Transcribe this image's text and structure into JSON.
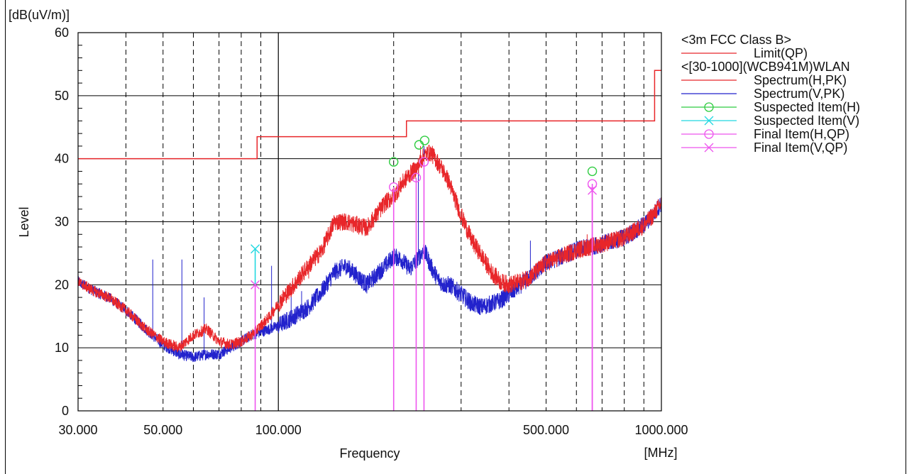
{
  "chart_data": {
    "type": "line",
    "y_unit_label": "[dB(uV/m)]",
    "x_unit_label": "[MHz]",
    "xlabel": "Frequency",
    "ylabel": "Level",
    "x_scale": "log",
    "xlim": [
      30,
      1000
    ],
    "ylim": [
      0,
      60
    ],
    "y_ticks": [
      0,
      10,
      20,
      30,
      40,
      50,
      60
    ],
    "y_tick_labels": [
      "0",
      "10",
      "20",
      "30",
      "40",
      "50",
      "60"
    ],
    "x_major_ticks": [
      100
    ],
    "x_minor_ticks": [
      40,
      50,
      60,
      70,
      80,
      90,
      200,
      300,
      400,
      500,
      600,
      700,
      800,
      900
    ],
    "x_tick_labels": [
      {
        "value": 30,
        "label": "30.000"
      },
      {
        "value": 50,
        "label": "50.000"
      },
      {
        "value": 100,
        "label": "100.000"
      },
      {
        "value": 500,
        "label": "500.000"
      },
      {
        "value": 1000,
        "label": "1000.000"
      }
    ],
    "grid": true,
    "legend_position": "right",
    "legend": [
      {
        "label": "<3m FCC Class B>",
        "kind": "header"
      },
      {
        "label": "Limit(QP)",
        "kind": "line",
        "color": "#e8262a"
      },
      {
        "label": "<[30-1000](WCB941M)WLAN",
        "kind": "header"
      },
      {
        "label": "Spectrum(H,PK)",
        "kind": "line",
        "color": "#e8262a"
      },
      {
        "label": "Spectrum(V,PK)",
        "kind": "line",
        "color": "#2222cc"
      },
      {
        "label": "Suspected Item(H)",
        "kind": "circle",
        "color": "#2ecc40"
      },
      {
        "label": "Suspected Item(V)",
        "kind": "cross",
        "color": "#22d8e0"
      },
      {
        "label": "Final Item(H,QP)",
        "kind": "circle",
        "color": "#ee55ee"
      },
      {
        "label": "Final Item(V,QP)",
        "kind": "cross",
        "color": "#ee55ee"
      }
    ],
    "limit_qp": {
      "color": "#e8262a",
      "x": [
        30,
        88,
        88,
        216,
        216,
        960,
        960,
        1000
      ],
      "y": [
        40,
        40,
        43.5,
        43.5,
        46,
        46,
        54,
        54
      ]
    },
    "spectrum_h": {
      "color": "#e8262a",
      "x": [
        30,
        33,
        36,
        40,
        45,
        50,
        55,
        60,
        65,
        70,
        75,
        80,
        85,
        90,
        95,
        100,
        110,
        120,
        130,
        140,
        150,
        160,
        170,
        180,
        190,
        200,
        210,
        220,
        230,
        240,
        250,
        260,
        270,
        280,
        300,
        320,
        340,
        360,
        380,
        400,
        430,
        460,
        500,
        550,
        600,
        650,
        700,
        750,
        800,
        850,
        900,
        950,
        1000
      ],
      "y": [
        20.5,
        19,
        18,
        16,
        13,
        11,
        10,
        12,
        13,
        11,
        10.5,
        11,
        12,
        13.5,
        15,
        17,
        20,
        23,
        25.5,
        30,
        30,
        29.5,
        29,
        31,
        33,
        34,
        36,
        37.5,
        38.5,
        40.5,
        41,
        39.5,
        38,
        36,
        31,
        27,
        24.5,
        22,
        20.5,
        20,
        20.5,
        21.5,
        23.5,
        24.5,
        25.5,
        26,
        26.5,
        27,
        27.5,
        28.5,
        29.5,
        31,
        33
      ]
    },
    "spectrum_v": {
      "color": "#2222cc",
      "x": [
        30,
        33,
        36,
        40,
        45,
        50,
        55,
        60,
        65,
        70,
        75,
        80,
        85,
        90,
        95,
        100,
        110,
        120,
        130,
        140,
        150,
        160,
        170,
        180,
        190,
        200,
        210,
        220,
        230,
        240,
        250,
        260,
        270,
        280,
        300,
        320,
        340,
        360,
        380,
        400,
        430,
        460,
        500,
        550,
        600,
        650,
        700,
        750,
        800,
        850,
        900,
        950,
        1000
      ],
      "y": [
        20.5,
        19,
        18,
        16,
        13,
        10.5,
        9,
        8.5,
        9,
        9,
        10,
        11,
        12,
        12.5,
        13,
        13.5,
        15,
        16.5,
        19,
        22,
        23,
        21.5,
        20,
        21.5,
        23,
        24.5,
        24,
        22.5,
        24,
        25.5,
        23,
        21,
        20,
        20,
        18.5,
        17,
        16.5,
        17,
        17.5,
        18.5,
        20,
        21.5,
        23.5,
        24.5,
        25.5,
        26,
        26.5,
        27,
        27.5,
        28.5,
        29.5,
        31,
        33
      ]
    },
    "spikes_v": [
      {
        "x": 47,
        "y": 24
      },
      {
        "x": 56,
        "y": 24
      },
      {
        "x": 64,
        "y": 18
      },
      {
        "x": 96,
        "y": 23
      },
      {
        "x": 108,
        "y": 19
      },
      {
        "x": 115,
        "y": 19
      },
      {
        "x": 200,
        "y": 35
      },
      {
        "x": 232,
        "y": 40
      },
      {
        "x": 240,
        "y": 42
      },
      {
        "x": 455,
        "y": 27
      },
      {
        "x": 580,
        "y": 25
      },
      {
        "x": 660,
        "y": 36
      },
      {
        "x": 760,
        "y": 28
      }
    ],
    "spikes_h": [
      {
        "x": 120,
        "y": 21
      },
      {
        "x": 145,
        "y": 31
      },
      {
        "x": 200,
        "y": 35
      },
      {
        "x": 235,
        "y": 42
      },
      {
        "x": 640,
        "y": 28
      }
    ],
    "suspected_h": [
      {
        "x": 200,
        "y": 39.5
      },
      {
        "x": 233,
        "y": 42.2
      },
      {
        "x": 241,
        "y": 42.9
      },
      {
        "x": 660,
        "y": 38
      }
    ],
    "suspected_v": [
      {
        "x": 87,
        "y": 25.7
      }
    ],
    "final_h": [
      {
        "x": 200,
        "y": 35.5
      },
      {
        "x": 229,
        "y": 37
      },
      {
        "x": 240,
        "y": 39.5
      },
      {
        "x": 660,
        "y": 36
      }
    ],
    "final_v": [
      {
        "x": 87,
        "y": 20
      },
      {
        "x": 660,
        "y": 35
      }
    ]
  }
}
